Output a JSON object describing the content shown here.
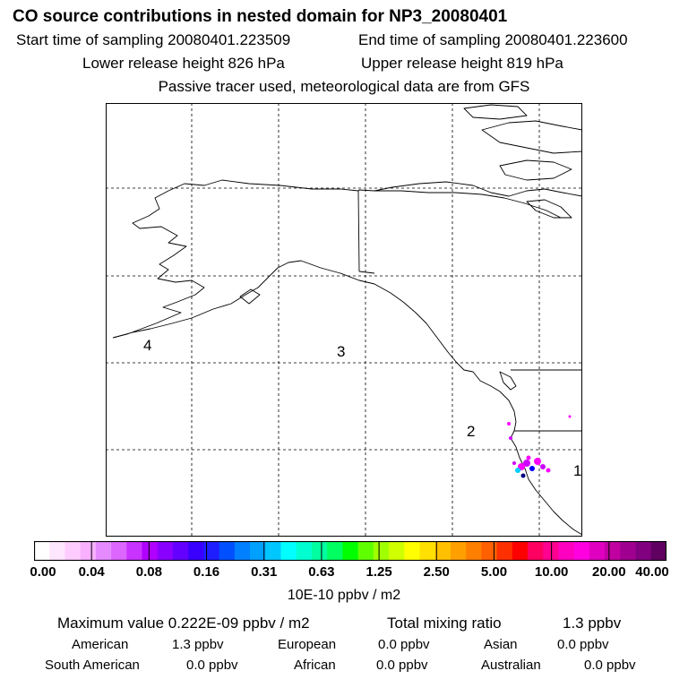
{
  "header": {
    "title": "CO  source contributions in nested domain for NP3_20080401",
    "start_time": "Start time of sampling 20080401.223509",
    "end_time": "End time of sampling 20080401.223600",
    "lower_height": "Lower release height  826 hPa",
    "upper_height": "Upper release height  819 hPa",
    "note": "Passive tracer used, meteorological data are from GFS"
  },
  "map": {
    "region_labels": [
      "4",
      "3",
      "2",
      "1"
    ],
    "plume_colors": [
      "#ff00ff",
      "#cc00ff",
      "#0000ff",
      "#00ccff",
      "#000080"
    ]
  },
  "colorbar": {
    "colors": [
      "#ffffff",
      "#ffe6ff",
      "#ffccff",
      "#f8b0ff",
      "#e58bff",
      "#dd66ff",
      "#c933ff",
      "#b000ff",
      "#8a00ff",
      "#6400ff",
      "#3a00ff",
      "#1e1eff",
      "#0050ff",
      "#0080ff",
      "#00a0ff",
      "#00c8ff",
      "#00ffff",
      "#00ffd0",
      "#00ffa0",
      "#00ff60",
      "#00ff00",
      "#60ff00",
      "#a0ff00",
      "#d0ff00",
      "#ffff00",
      "#ffe000",
      "#ffc000",
      "#ffa000",
      "#ff8000",
      "#ff6000",
      "#ff3000",
      "#ff0000",
      "#ff0060",
      "#ff0090",
      "#ff00c0",
      "#ff00e0",
      "#e000c0",
      "#c000a0",
      "#a00090",
      "#800080",
      "#600060"
    ],
    "tick_labels": [
      "0.00",
      "0.04",
      "0.08",
      "0.16",
      "0.31",
      "0.63",
      "1.25",
      "2.50",
      "5.00",
      "10.00",
      "20.00",
      "40.00"
    ],
    "units": "10E-10 ppbv / m2"
  },
  "summary": {
    "max_value": "Maximum value  0.222E-09 ppbv / m2",
    "total_label": "Total mixing ratio",
    "total_value": "1.3 ppbv",
    "regions": [
      {
        "name": "American",
        "value": "1.3 ppbv"
      },
      {
        "name": "European",
        "value": "0.0 ppbv"
      },
      {
        "name": "Asian",
        "value": "0.0 ppbv"
      },
      {
        "name": "South American",
        "value": "0.0 ppbv"
      },
      {
        "name": "African",
        "value": "0.0 ppbv"
      },
      {
        "name": "Australian",
        "value": "0.0 ppbv"
      }
    ]
  }
}
